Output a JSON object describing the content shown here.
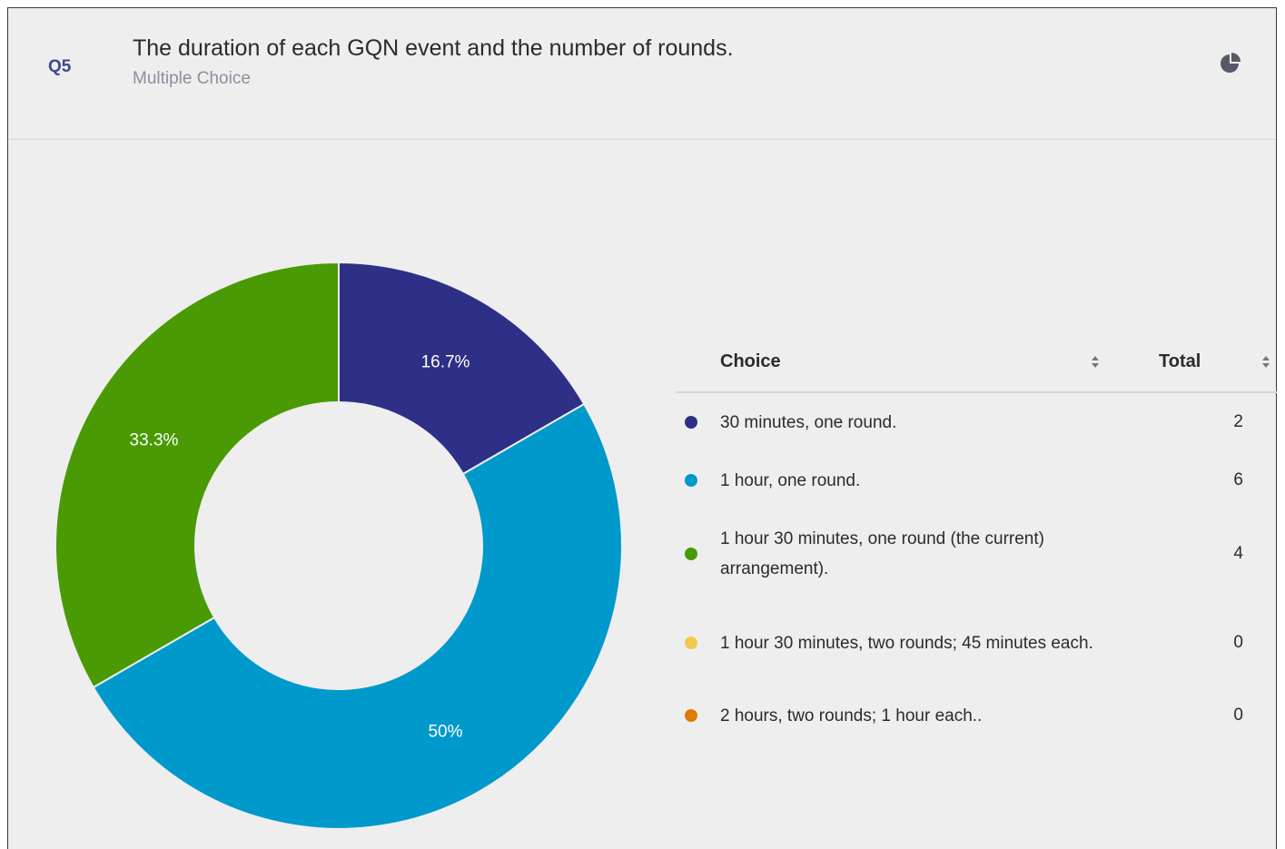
{
  "question": {
    "number": "Q5",
    "title": "The duration of each GQN event and the number of rounds.",
    "type": "Multiple Choice",
    "view_icon": "pie-chart-icon"
  },
  "table": {
    "choice_header": "Choice",
    "total_header": "Total",
    "rows": [
      {
        "choice": "30 minutes, one round.",
        "total": "2",
        "color": "#2e2f87"
      },
      {
        "choice": "1 hour, one round.",
        "total": "6",
        "color": "#0099cc"
      },
      {
        "choice": "1 hour 30 minutes, one round (the current) arrangement).",
        "total": "4",
        "color": "#4a9a05"
      },
      {
        "choice": "1 hour 30 minutes, two rounds; 45 minutes each.",
        "total": "0",
        "color": "#f2c94c"
      },
      {
        "choice": "2 hours, two rounds; 1 hour each..",
        "total": "0",
        "color": "#e07b00"
      }
    ]
  },
  "chart_data": {
    "type": "pie",
    "variant": "donut",
    "categories": [
      "30 minutes, one round.",
      "1 hour, one round.",
      "1 hour 30 minutes, one round (the current) arrangement).",
      "1 hour 30 minutes, two rounds; 45 minutes each.",
      "2 hours, two rounds; 1 hour each.."
    ],
    "values": [
      2,
      6,
      4,
      0,
      0
    ],
    "labels": [
      "16.7%",
      "50%",
      "33.3%",
      "",
      ""
    ],
    "colors": [
      "#2e2f87",
      "#0099cc",
      "#4a9a05",
      "#f2c94c",
      "#e07b00"
    ],
    "start_angle": "12 o'clock",
    "direction": "clockwise"
  }
}
